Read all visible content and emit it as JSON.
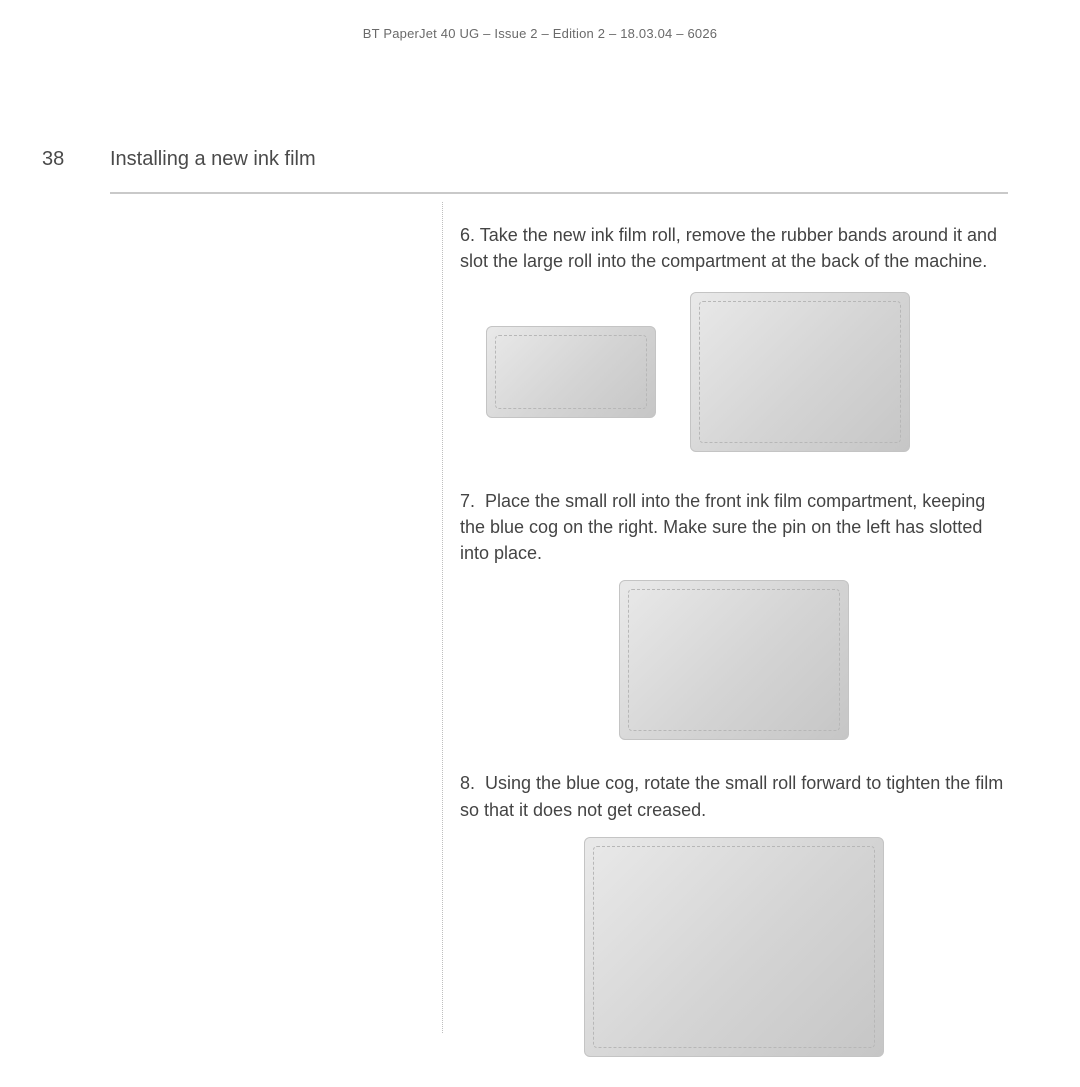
{
  "header": {
    "doc_line": "BT PaperJet 40 UG – Issue 2 – Edition 2 – 18.03.04 – 6026"
  },
  "page": {
    "number": "38",
    "section_title": "Installing a new ink film"
  },
  "steps": [
    {
      "label": "6.",
      "text": "Take the new ink film roll, remove the rubber bands around it and slot the large roll into the compartment at the back of the machine."
    },
    {
      "label": "7.",
      "text": "Place the small roll into the front ink film compartment, keeping the blue cog on the right. Make sure the pin on the left has slotted into place."
    },
    {
      "label": "8.",
      "text": "Using the blue cog, rotate the small roll forward to tighten the film so that it does not get creased."
    }
  ],
  "figures": {
    "fig6a_alt": "ink-film-roll",
    "fig6b_alt": "insert-large-roll-into-machine",
    "fig7_alt": "insert-small-roll-front-compartment",
    "fig8_alt": "rotate-blue-cog-tighten-film"
  },
  "colors": {
    "text": "#4a4a4a",
    "muted": "#6a6a6a",
    "rule": "#c9c9c9",
    "vline": "#bfbfbf",
    "bg": "#ffffff"
  }
}
